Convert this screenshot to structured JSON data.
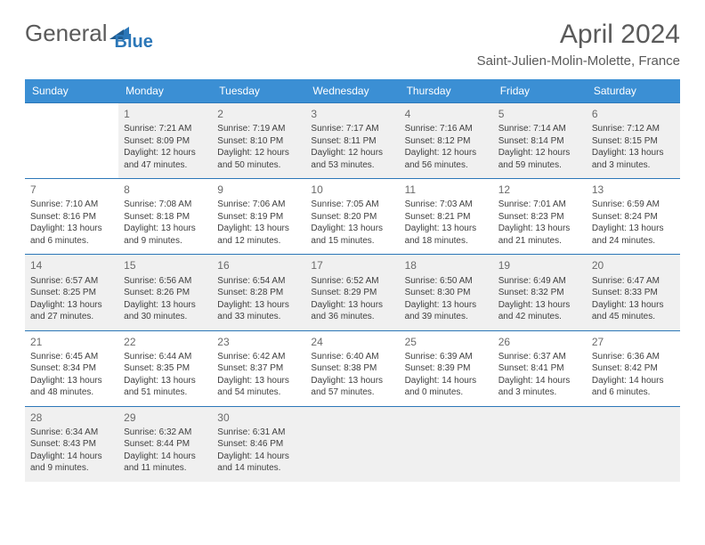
{
  "header": {
    "logo": {
      "word1": "General",
      "word2": "Blue"
    },
    "month_title": "April 2024",
    "location": "Saint-Julien-Molin-Molette, France"
  },
  "colors": {
    "header_bg": "#3b8fd4",
    "header_text": "#ffffff",
    "rule": "#2c77b8",
    "dim_bg": "#f0f0f0",
    "body_text": "#404040",
    "daynum_text": "#6a6a6a",
    "title_text": "#5a5a5a",
    "logo_gray": "#5a5a5a",
    "logo_blue": "#2c77b8",
    "page_bg": "#ffffff"
  },
  "typography": {
    "title_fontsize_pt": 22,
    "location_fontsize_pt": 11,
    "weekday_fontsize_pt": 9,
    "daynum_fontsize_pt": 9,
    "cell_fontsize_pt": 7.5
  },
  "calendar": {
    "type": "calendar-grid",
    "columns": 7,
    "rows": 5,
    "weekdays": [
      "Sunday",
      "Monday",
      "Tuesday",
      "Wednesday",
      "Thursday",
      "Friday",
      "Saturday"
    ],
    "days": [
      {
        "n": "",
        "empty": true
      },
      {
        "n": "1",
        "dim": true,
        "sunrise": "Sunrise: 7:21 AM",
        "sunset": "Sunset: 8:09 PM",
        "day1": "Daylight: 12 hours",
        "day2": "and 47 minutes."
      },
      {
        "n": "2",
        "dim": true,
        "sunrise": "Sunrise: 7:19 AM",
        "sunset": "Sunset: 8:10 PM",
        "day1": "Daylight: 12 hours",
        "day2": "and 50 minutes."
      },
      {
        "n": "3",
        "dim": true,
        "sunrise": "Sunrise: 7:17 AM",
        "sunset": "Sunset: 8:11 PM",
        "day1": "Daylight: 12 hours",
        "day2": "and 53 minutes."
      },
      {
        "n": "4",
        "dim": true,
        "sunrise": "Sunrise: 7:16 AM",
        "sunset": "Sunset: 8:12 PM",
        "day1": "Daylight: 12 hours",
        "day2": "and 56 minutes."
      },
      {
        "n": "5",
        "dim": true,
        "sunrise": "Sunrise: 7:14 AM",
        "sunset": "Sunset: 8:14 PM",
        "day1": "Daylight: 12 hours",
        "day2": "and 59 minutes."
      },
      {
        "n": "6",
        "dim": true,
        "sunrise": "Sunrise: 7:12 AM",
        "sunset": "Sunset: 8:15 PM",
        "day1": "Daylight: 13 hours",
        "day2": "and 3 minutes."
      },
      {
        "n": "7",
        "sunrise": "Sunrise: 7:10 AM",
        "sunset": "Sunset: 8:16 PM",
        "day1": "Daylight: 13 hours",
        "day2": "and 6 minutes."
      },
      {
        "n": "8",
        "sunrise": "Sunrise: 7:08 AM",
        "sunset": "Sunset: 8:18 PM",
        "day1": "Daylight: 13 hours",
        "day2": "and 9 minutes."
      },
      {
        "n": "9",
        "sunrise": "Sunrise: 7:06 AM",
        "sunset": "Sunset: 8:19 PM",
        "day1": "Daylight: 13 hours",
        "day2": "and 12 minutes."
      },
      {
        "n": "10",
        "sunrise": "Sunrise: 7:05 AM",
        "sunset": "Sunset: 8:20 PM",
        "day1": "Daylight: 13 hours",
        "day2": "and 15 minutes."
      },
      {
        "n": "11",
        "sunrise": "Sunrise: 7:03 AM",
        "sunset": "Sunset: 8:21 PM",
        "day1": "Daylight: 13 hours",
        "day2": "and 18 minutes."
      },
      {
        "n": "12",
        "sunrise": "Sunrise: 7:01 AM",
        "sunset": "Sunset: 8:23 PM",
        "day1": "Daylight: 13 hours",
        "day2": "and 21 minutes."
      },
      {
        "n": "13",
        "sunrise": "Sunrise: 6:59 AM",
        "sunset": "Sunset: 8:24 PM",
        "day1": "Daylight: 13 hours",
        "day2": "and 24 minutes."
      },
      {
        "n": "14",
        "dim": true,
        "sunrise": "Sunrise: 6:57 AM",
        "sunset": "Sunset: 8:25 PM",
        "day1": "Daylight: 13 hours",
        "day2": "and 27 minutes."
      },
      {
        "n": "15",
        "dim": true,
        "sunrise": "Sunrise: 6:56 AM",
        "sunset": "Sunset: 8:26 PM",
        "day1": "Daylight: 13 hours",
        "day2": "and 30 minutes."
      },
      {
        "n": "16",
        "dim": true,
        "sunrise": "Sunrise: 6:54 AM",
        "sunset": "Sunset: 8:28 PM",
        "day1": "Daylight: 13 hours",
        "day2": "and 33 minutes."
      },
      {
        "n": "17",
        "dim": true,
        "sunrise": "Sunrise: 6:52 AM",
        "sunset": "Sunset: 8:29 PM",
        "day1": "Daylight: 13 hours",
        "day2": "and 36 minutes."
      },
      {
        "n": "18",
        "dim": true,
        "sunrise": "Sunrise: 6:50 AM",
        "sunset": "Sunset: 8:30 PM",
        "day1": "Daylight: 13 hours",
        "day2": "and 39 minutes."
      },
      {
        "n": "19",
        "dim": true,
        "sunrise": "Sunrise: 6:49 AM",
        "sunset": "Sunset: 8:32 PM",
        "day1": "Daylight: 13 hours",
        "day2": "and 42 minutes."
      },
      {
        "n": "20",
        "dim": true,
        "sunrise": "Sunrise: 6:47 AM",
        "sunset": "Sunset: 8:33 PM",
        "day1": "Daylight: 13 hours",
        "day2": "and 45 minutes."
      },
      {
        "n": "21",
        "sunrise": "Sunrise: 6:45 AM",
        "sunset": "Sunset: 8:34 PM",
        "day1": "Daylight: 13 hours",
        "day2": "and 48 minutes."
      },
      {
        "n": "22",
        "sunrise": "Sunrise: 6:44 AM",
        "sunset": "Sunset: 8:35 PM",
        "day1": "Daylight: 13 hours",
        "day2": "and 51 minutes."
      },
      {
        "n": "23",
        "sunrise": "Sunrise: 6:42 AM",
        "sunset": "Sunset: 8:37 PM",
        "day1": "Daylight: 13 hours",
        "day2": "and 54 minutes."
      },
      {
        "n": "24",
        "sunrise": "Sunrise: 6:40 AM",
        "sunset": "Sunset: 8:38 PM",
        "day1": "Daylight: 13 hours",
        "day2": "and 57 minutes."
      },
      {
        "n": "25",
        "sunrise": "Sunrise: 6:39 AM",
        "sunset": "Sunset: 8:39 PM",
        "day1": "Daylight: 14 hours",
        "day2": "and 0 minutes."
      },
      {
        "n": "26",
        "sunrise": "Sunrise: 6:37 AM",
        "sunset": "Sunset: 8:41 PM",
        "day1": "Daylight: 14 hours",
        "day2": "and 3 minutes."
      },
      {
        "n": "27",
        "sunrise": "Sunrise: 6:36 AM",
        "sunset": "Sunset: 8:42 PM",
        "day1": "Daylight: 14 hours",
        "day2": "and 6 minutes."
      },
      {
        "n": "28",
        "dim": true,
        "sunrise": "Sunrise: 6:34 AM",
        "sunset": "Sunset: 8:43 PM",
        "day1": "Daylight: 14 hours",
        "day2": "and 9 minutes."
      },
      {
        "n": "29",
        "dim": true,
        "sunrise": "Sunrise: 6:32 AM",
        "sunset": "Sunset: 8:44 PM",
        "day1": "Daylight: 14 hours",
        "day2": "and 11 minutes."
      },
      {
        "n": "30",
        "dim": true,
        "sunrise": "Sunrise: 6:31 AM",
        "sunset": "Sunset: 8:46 PM",
        "day1": "Daylight: 14 hours",
        "day2": "and 14 minutes."
      },
      {
        "n": "",
        "empty": true,
        "dim": true
      },
      {
        "n": "",
        "empty": true,
        "dim": true
      },
      {
        "n": "",
        "empty": true,
        "dim": true
      },
      {
        "n": "",
        "empty": true,
        "dim": true
      }
    ]
  }
}
